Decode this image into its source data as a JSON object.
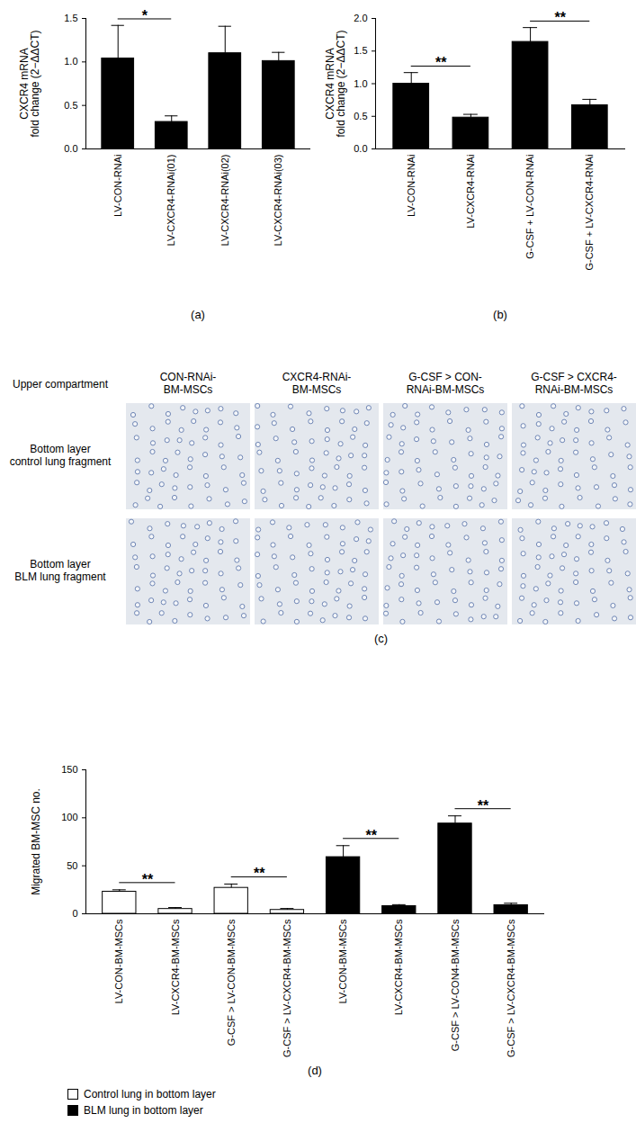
{
  "chart_data": [
    {
      "panel": "(a)",
      "type": "bar",
      "ylabel": "CXCR4 mRNA\nfold change (2−ΔΔCT)",
      "categories": [
        "LV-CON-RNAi",
        "LV-CXCR4-RNAi(01)",
        "LV-CXCR4-RNAi(02)",
        "LV-CXCR4-RNAi(03)"
      ],
      "values": [
        1.04,
        0.31,
        1.1,
        1.01
      ],
      "errors": [
        0.38,
        0.07,
        0.31,
        0.1
      ],
      "color": "#000000",
      "ylim": [
        0,
        1.5
      ],
      "yticks": [
        {
          "value": 0,
          "label": "0.0"
        },
        {
          "value": 0.5,
          "label": "0.5"
        },
        {
          "value": 1,
          "label": "1.0"
        },
        {
          "value": 1.5,
          "label": "1.5"
        }
      ],
      "annotations": [
        {
          "text": "*",
          "from": 0,
          "to": 1
        }
      ]
    },
    {
      "panel": "(b)",
      "type": "bar",
      "ylabel": "CXCR4 mRNA\nfold change (2−ΔΔCT)",
      "categories": [
        "LV-CON-RNAi",
        "LV-CXCR4-RNAi",
        "G-CSF + LV-CON-RNAi",
        "G-CSF + LV-CXCR4-RNAi"
      ],
      "values": [
        1.0,
        0.48,
        1.64,
        0.67
      ],
      "errors": [
        0.17,
        0.05,
        0.22,
        0.09
      ],
      "color": "#000000",
      "ylim": [
        0,
        2
      ],
      "yticks": [
        {
          "value": 0,
          "label": "0.0"
        },
        {
          "value": 0.5,
          "label": "0.5"
        },
        {
          "value": 1,
          "label": "1.0"
        },
        {
          "value": 1.5,
          "label": "1.5"
        },
        {
          "value": 2,
          "label": "2.0"
        }
      ],
      "annotations": [
        {
          "text": "**",
          "from": 0,
          "to": 1
        },
        {
          "text": "**",
          "from": 2,
          "to": 3
        }
      ]
    },
    {
      "panel": "(d)",
      "type": "bar",
      "ylabel": "Migrated BM-MSC no.",
      "categories": [
        "LV-CON-BM-MSCs",
        "LV-CXCR4-BM-MSCs",
        "G-CSF > LV-CON-BM-MSCs",
        "G-CSF > LV-CXCR4-BM-MSCs",
        "LV-CON-BM-MSCs",
        "LV-CXCR4-BM-MSCs",
        "G-CSF > LV-CON4-BM-MSCs",
        "G-CSF > LV-CXCR4-BM-MSCs"
      ],
      "series": [
        {
          "name": "Control lung in bottom layer",
          "color": "#ffffff",
          "values": [
            23,
            5,
            27,
            4,
            null,
            null,
            null,
            null
          ],
          "errors": [
            2,
            1.5,
            4,
            1.5,
            null,
            null,
            null,
            null
          ]
        },
        {
          "name": "BLM lung in bottom layer",
          "color": "#000000",
          "values": [
            null,
            null,
            null,
            null,
            59,
            8,
            94,
            9
          ],
          "errors": [
            null,
            null,
            null,
            null,
            12,
            1.5,
            8,
            2
          ]
        }
      ],
      "legend": "bottom",
      "ylim": [
        0,
        150
      ],
      "yticks": [
        0,
        50,
        100,
        150
      ],
      "annotations": [
        {
          "text": "**",
          "from": 0,
          "to": 1
        },
        {
          "text": "**",
          "from": 2,
          "to": 3
        },
        {
          "text": "**",
          "from": 4,
          "to": 5
        },
        {
          "text": "**",
          "from": 6,
          "to": 7
        }
      ]
    }
  ],
  "image_panel": {
    "panel": "(c)",
    "corner_label": "Upper compartment",
    "columns": [
      "CON-RNAi-\nBM-MSCs",
      "CXCR4-RNAi-\nBM-MSCs",
      "G-CSF > CON-\nRNAi-BM-MSCs",
      "G-CSF > CXCR4-\nRNAi-BM-MSCs"
    ],
    "rows": [
      "Bottom layer\ncontrol lung fragment",
      "Bottom layer\nBLM lung fragment"
    ]
  }
}
